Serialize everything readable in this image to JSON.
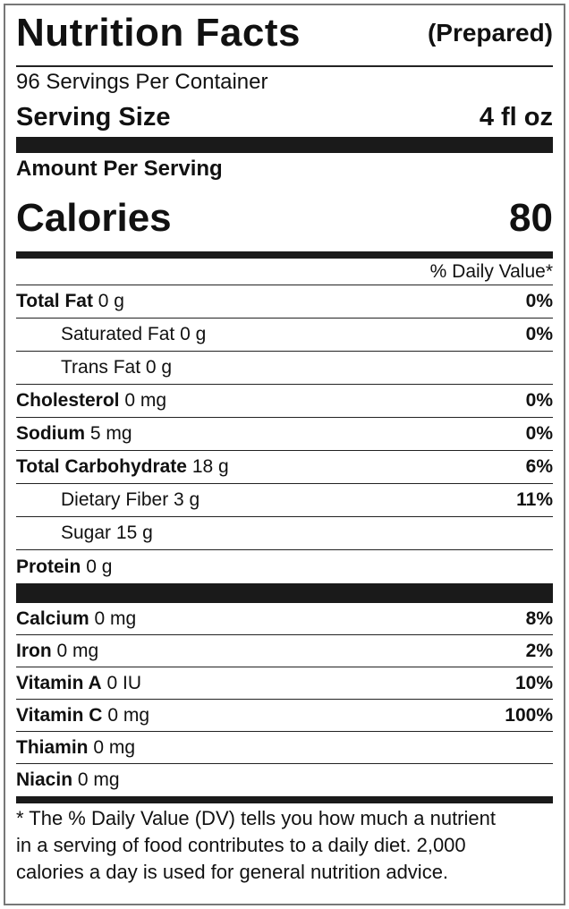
{
  "header": {
    "title": "Nutrition Facts",
    "subtitle": "(Prepared)"
  },
  "servings": "96 Servings Per Container",
  "serving_size": {
    "label": "Serving Size",
    "value": "4 fl oz"
  },
  "amount_per_serving": "Amount Per Serving",
  "calories": {
    "label": "Calories",
    "value": 80
  },
  "daily_value_header": "% Daily Value*",
  "nutrients": [
    {
      "name": "Total Fat",
      "amount": "0 g",
      "dv": "0%",
      "indent": false
    },
    {
      "name": "Saturated Fat",
      "amount": "0 g",
      "dv": "0%",
      "indent": true
    },
    {
      "name": "Trans Fat",
      "amount": "0 g",
      "dv": null,
      "indent": true
    },
    {
      "name": "Cholesterol",
      "amount": "0 mg",
      "dv": "0%",
      "indent": false
    },
    {
      "name": "Sodium",
      "amount": "5 mg",
      "dv": "0%",
      "indent": false
    },
    {
      "name": "Total Carbohydrate",
      "amount": "18 g",
      "dv": "6%",
      "indent": false
    },
    {
      "name": "Dietary Fiber",
      "amount": "3 g",
      "dv": "11%",
      "indent": true
    },
    {
      "name": "Sugar",
      "amount": "15 g",
      "dv": null,
      "indent": true
    },
    {
      "name": "Protein",
      "amount": "0 g",
      "dv": null,
      "indent": false
    }
  ],
  "vitamins": [
    {
      "name": "Calcium",
      "amount": "0 mg",
      "dv": "8%"
    },
    {
      "name": "Iron",
      "amount": "0 mg",
      "dv": "2%"
    },
    {
      "name": "Vitamin A",
      "amount": "0 IU",
      "dv": "10%"
    },
    {
      "name": "Vitamin C",
      "amount": "0 mg",
      "dv": "100%"
    },
    {
      "name": "Thiamin",
      "amount": "0 mg",
      "dv": null
    },
    {
      "name": "Niacin",
      "amount": "0 mg",
      "dv": null
    }
  ],
  "footnote": [
    "* The % Daily Value (DV) tells you how much a nutrient",
    "in a serving of food contributes to a daily diet. 2,000",
    "calories a day is used for general nutrition advice."
  ]
}
